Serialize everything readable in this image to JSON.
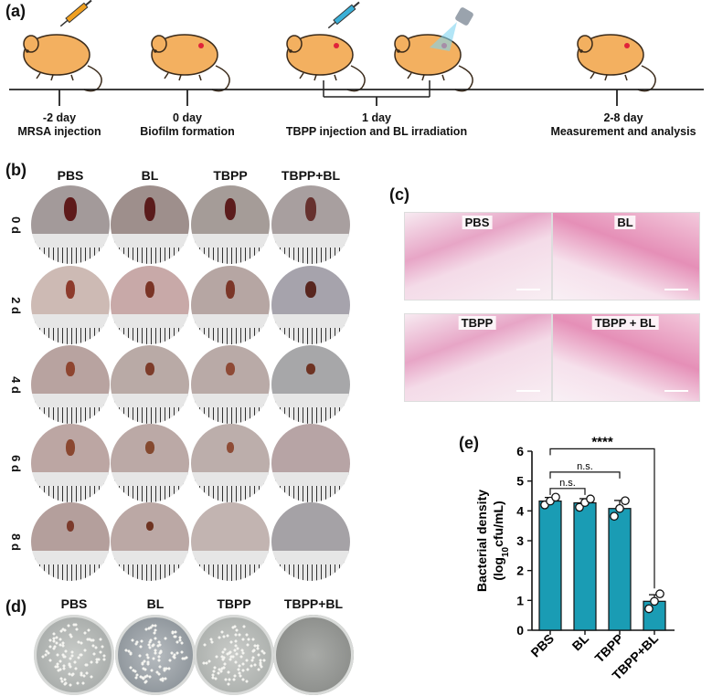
{
  "panels": {
    "a": "(a)",
    "b": "(b)",
    "c": "(c)",
    "d": "(d)",
    "e": "(e)"
  },
  "timeline": {
    "events": [
      {
        "day": "-2 day",
        "desc": "MRSA injection"
      },
      {
        "day": "0 day",
        "desc": "Biofilm formation"
      },
      {
        "day": "1 day",
        "desc": "TBPP injection and BL irradiation"
      },
      {
        "day": "2-8 day",
        "desc": "Measurement and analysis"
      }
    ]
  },
  "wound_grid": {
    "columns": [
      "PBS",
      "BL",
      "TBPP",
      "TBPP+BL"
    ],
    "rows": [
      "0 d",
      "2 d",
      "4 d",
      "6 d",
      "8 d"
    ]
  },
  "histology": {
    "labels": [
      "PBS",
      "BL",
      "TBPP",
      "TBPP + BL"
    ]
  },
  "plates": {
    "labels": [
      "PBS",
      "BL",
      "TBPP",
      "TBPP+BL"
    ]
  },
  "colors": {
    "bar": "#1a9cb4",
    "he_pink": "#e58fb7",
    "mouse": "#f3b060"
  },
  "chart_data": {
    "type": "bar",
    "categories": [
      "PBS",
      "BL",
      "TBPP",
      "TBPP+BL"
    ],
    "values": [
      4.33,
      4.27,
      4.08,
      0.97
    ],
    "errors": [
      0.12,
      0.14,
      0.27,
      0.22
    ],
    "points": [
      [
        4.2,
        4.33,
        4.46
      ],
      [
        4.12,
        4.28,
        4.4
      ],
      [
        3.82,
        4.08,
        4.34
      ],
      [
        0.72,
        0.97,
        1.22
      ]
    ],
    "ylabel_main": "Bacterial density",
    "ylabel_sub_pre": "(log",
    "ylabel_sub_sub": "10",
    "ylabel_sub_post": "cfu/mL)",
    "ylim": [
      0,
      6
    ],
    "yticks": [
      "0",
      "1",
      "2",
      "3",
      "4",
      "5",
      "6"
    ],
    "significance": [
      {
        "from": 0,
        "to": 1,
        "label": "n.s."
      },
      {
        "from": 0,
        "to": 2,
        "label": "n.s."
      },
      {
        "from": 0,
        "to": 3,
        "label": "****"
      }
    ]
  }
}
